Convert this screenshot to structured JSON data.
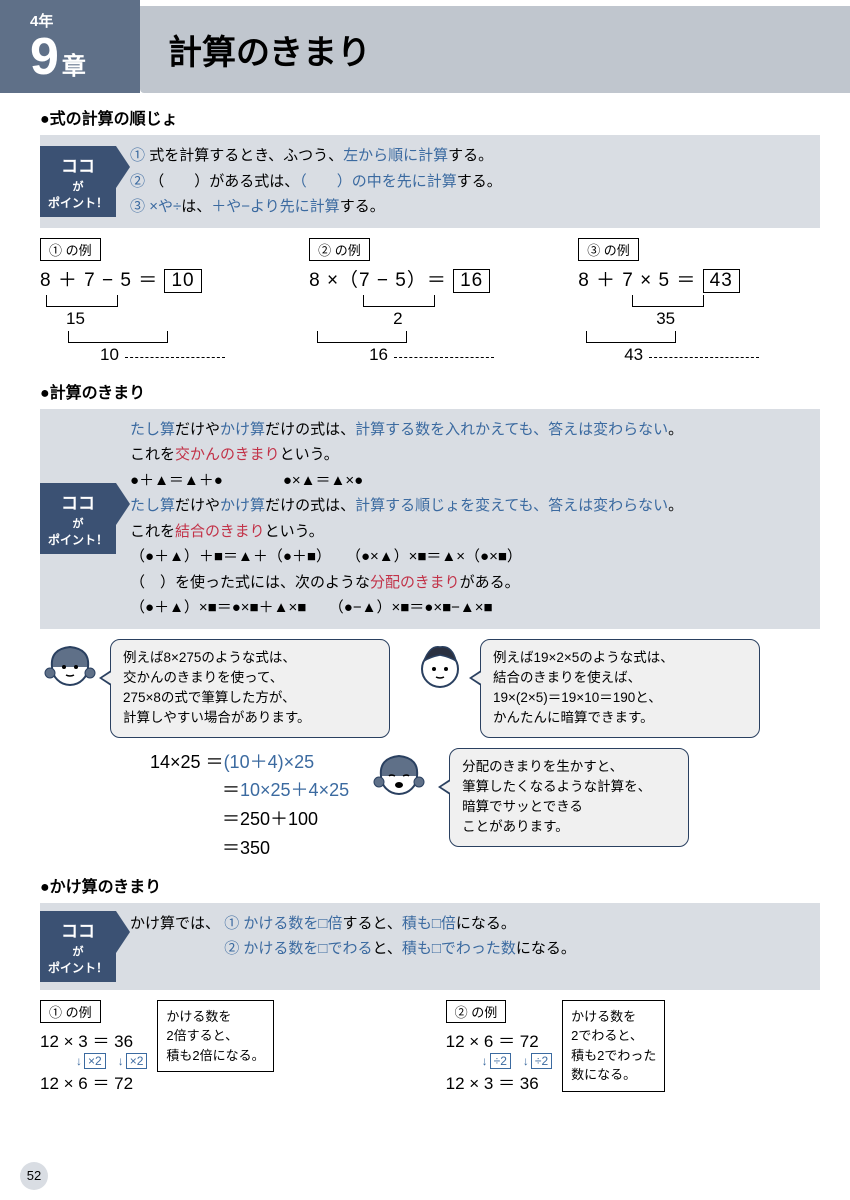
{
  "header": {
    "grade": "4年",
    "chapter_num": "9",
    "chapter_kanji": "章",
    "title": "計算のきまり"
  },
  "colors": {
    "header_bg": "#5f7088",
    "title_bg": "#c0c6ce",
    "point_tag": "#3b5173",
    "block_bg": "#d9dde3",
    "blue": "#3b6aa0",
    "red": "#c23248"
  },
  "sec1": {
    "heading": "●式の計算の順じょ",
    "point_tag": {
      "koko": "ココ",
      "ga": "が",
      "point": "ポイント！"
    },
    "rules": [
      {
        "n": "①",
        "pre": "式を計算するとき、ふつう、",
        "hl": "左から順に計算",
        "post": "する。"
      },
      {
        "n": "②",
        "pre": "（　　）がある式は、",
        "hl": "（　　）の中を先に計算",
        "post": "する。"
      },
      {
        "n": "③",
        "pre_hl": "×や÷",
        "mid": "は、",
        "hl": "＋や−より先に計算",
        "post": "する。"
      }
    ],
    "examples": [
      {
        "label": "① の例",
        "eq": "8 ＋ 7 − 5 ＝",
        "ans": "10",
        "step1": "15",
        "step2": "10"
      },
      {
        "label": "② の例",
        "eq": "8 ×（7 − 5）＝",
        "ans": "16",
        "step1": "2",
        "step2": "16"
      },
      {
        "label": "③ の例",
        "eq": "8 ＋ 7 × 5 ＝",
        "ans": "43",
        "step1": "35",
        "step2": "43"
      }
    ]
  },
  "sec2": {
    "heading": "●計算のきまり",
    "lines": [
      [
        {
          "t": "たし算",
          "c": "blue"
        },
        {
          "t": "だけや"
        },
        {
          "t": "かけ算",
          "c": "blue"
        },
        {
          "t": "だけの式は、"
        },
        {
          "t": "計算する数を入れかえても、答えは変わらない",
          "c": "blue"
        },
        {
          "t": "。"
        }
      ],
      [
        {
          "t": "これを"
        },
        {
          "t": "交かんのきまり",
          "c": "red"
        },
        {
          "t": "という。"
        }
      ],
      [
        {
          "t": "●＋▲＝▲＋●　　　　●×▲＝▲×●"
        }
      ],
      [
        {
          "t": "たし算",
          "c": "blue"
        },
        {
          "t": "だけや"
        },
        {
          "t": "かけ算",
          "c": "blue"
        },
        {
          "t": "だけの式は、"
        },
        {
          "t": "計算する順じょを変えても、答えは変わらない",
          "c": "blue"
        },
        {
          "t": "。"
        }
      ],
      [
        {
          "t": "これを"
        },
        {
          "t": "結合のきまり",
          "c": "red"
        },
        {
          "t": "という。"
        }
      ],
      [
        {
          "t": "（●＋▲）＋■＝▲＋（●＋■）　　（●×▲）×■＝▲×（●×■）"
        }
      ],
      [
        {
          "t": "（　）を使った式には、次のような"
        },
        {
          "t": "分配のきまり",
          "c": "red"
        },
        {
          "t": "がある。"
        }
      ],
      [
        {
          "t": "（●＋▲）×■＝●×■＋▲×■　　（●−▲）×■＝●×■−▲×■"
        }
      ]
    ],
    "speech1": "例えば8×275のような式は、\n交かんのきまりを使って、\n275×8の式で筆算した方が、\n計算しやすい場合があります。",
    "speech2": "例えば19×2×5のような式は、\n結合のきまりを使えば、\n19×(2×5)＝19×10＝190と、\nかんたんに暗算できます。",
    "speech3": "分配のきまりを生かすと、\n筆算したくなるような計算を、\n暗算でサッとできる\nことがあります。",
    "calc": [
      "14×25 ＝(10＋4)×25",
      "　　　　＝10×25＋4×25",
      "　　　　＝250＋100",
      "　　　　＝350"
    ]
  },
  "sec3": {
    "heading": "●かけ算のきまり",
    "intro": "かけ算では、",
    "rules": [
      {
        "n": "①",
        "a": "かける数を□倍",
        "mid": "すると、",
        "b": "積も□倍",
        "post": "になる。"
      },
      {
        "n": "②",
        "a": "かける数を□でわる",
        "mid": "と、",
        "b": "積も□でわった数",
        "post": "になる。"
      }
    ],
    "ex1": {
      "label": "① の例",
      "l1": "12 × 3 ＝ 36",
      "ops": "×2　×2",
      "l2": "12 × 6 ＝ 72",
      "note": "かける数を\n2倍すると、\n積も2倍になる。"
    },
    "ex2": {
      "label": "② の例",
      "l1": "12 × 6 ＝ 72",
      "ops": "÷2　÷2",
      "l2": "12 × 3 ＝ 36",
      "note": "かける数を\n2でわると、\n積も2でわった\n数になる。"
    }
  },
  "page": "52"
}
